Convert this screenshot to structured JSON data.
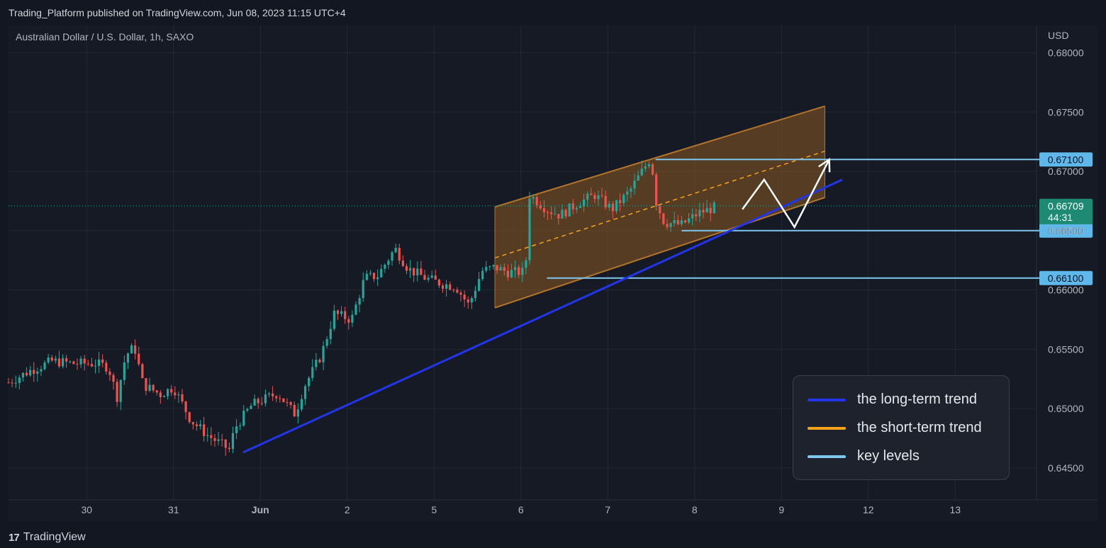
{
  "header": {
    "published": "Trading_Platform published on TradingView.com, Jun 08, 2023 11:15 UTC+4"
  },
  "symbol_line": "Australian Dollar / U.S. Dollar, 1h, SAXO",
  "currency": "USD",
  "footer": {
    "brand": "TradingView",
    "logo": "17"
  },
  "colors": {
    "up": "#26a69a",
    "down": "#ef5350",
    "long_trend": "#2235e8",
    "short_trend": "#f7a21b",
    "key_level": "#7ec8f0",
    "channel_fill": "#8a5a22"
  },
  "legend": [
    {
      "label": "the long-term trend",
      "color": "#2235e8"
    },
    {
      "label": "the short-term trend",
      "color": "#f7a21b"
    },
    {
      "label": "key levels",
      "color": "#7ec8f0"
    }
  ],
  "chart_data": {
    "type": "candlestick",
    "title": "Australian Dollar / U.S. Dollar, 1h, SAXO",
    "ylabel": "USD",
    "ylim": [
      0.6423,
      0.6823
    ],
    "y_ticks": [
      "0.68000",
      "0.67500",
      "0.67000",
      "0.66500",
      "0.66000",
      "0.65500",
      "0.65000",
      "0.64500"
    ],
    "x_ticks": [
      "30",
      "31",
      "Jun",
      "2",
      "5",
      "6",
      "7",
      "8",
      "9",
      "12",
      "13"
    ],
    "x_tick_pos": [
      0.9,
      1.9,
      2.9,
      3.9,
      4.9,
      5.9,
      6.9,
      7.9,
      8.9,
      9.9,
      10.9
    ],
    "price_path": [
      [
        0.0,
        0.6522
      ],
      [
        0.25,
        0.6532
      ],
      [
        0.5,
        0.654
      ],
      [
        0.75,
        0.6538
      ],
      [
        1.0,
        0.6538
      ],
      [
        1.15,
        0.6535
      ],
      [
        1.25,
        0.651
      ],
      [
        1.35,
        0.6545
      ],
      [
        1.45,
        0.6552
      ],
      [
        1.55,
        0.652
      ],
      [
        1.75,
        0.6512
      ],
      [
        1.9,
        0.6518
      ],
      [
        2.1,
        0.649
      ],
      [
        2.3,
        0.6477
      ],
      [
        2.55,
        0.6465
      ],
      [
        2.6,
        0.6483
      ],
      [
        2.8,
        0.6503
      ],
      [
        3.1,
        0.6513
      ],
      [
        3.3,
        0.6495
      ],
      [
        3.4,
        0.6518
      ],
      [
        3.6,
        0.6545
      ],
      [
        3.75,
        0.658
      ],
      [
        3.95,
        0.6575
      ],
      [
        4.1,
        0.661
      ],
      [
        4.25,
        0.6612
      ],
      [
        4.45,
        0.6635
      ],
      [
        4.6,
        0.6618
      ],
      [
        4.8,
        0.661
      ],
      [
        5.0,
        0.6605
      ],
      [
        5.15,
        0.6603
      ],
      [
        5.3,
        0.6587
      ],
      [
        5.45,
        0.6616
      ],
      [
        5.6,
        0.6619
      ],
      [
        5.75,
        0.6615
      ],
      [
        5.95,
        0.6615
      ],
      [
        6.0,
        0.668
      ],
      [
        6.2,
        0.6668
      ],
      [
        6.35,
        0.6663
      ],
      [
        6.55,
        0.6673
      ],
      [
        6.75,
        0.668
      ],
      [
        6.95,
        0.6668
      ],
      [
        7.15,
        0.6683
      ],
      [
        7.25,
        0.6695
      ],
      [
        7.4,
        0.6712
      ],
      [
        7.45,
        0.6675
      ],
      [
        7.55,
        0.6657
      ],
      [
        7.75,
        0.6655
      ],
      [
        7.95,
        0.6665
      ],
      [
        8.15,
        0.667
      ]
    ],
    "long_term_trend": {
      "from": [
        2.7,
        0.6463
      ],
      "to": [
        9.6,
        0.6693
      ]
    },
    "short_term_channel": {
      "upper": [
        [
          5.6,
          0.667
        ],
        [
          9.4,
          0.6755
        ]
      ],
      "lower": [
        [
          5.6,
          0.6585
        ],
        [
          9.4,
          0.6678
        ]
      ],
      "mid": [
        [
          5.6,
          0.6627
        ],
        [
          9.4,
          0.6717
        ]
      ]
    },
    "key_levels": [
      {
        "value": 0.671,
        "label": "0.67100"
      },
      {
        "value": 0.665,
        "label": "0.66500"
      },
      {
        "value": 0.661,
        "label": "0.66100"
      }
    ],
    "current_price": {
      "value": 0.66709,
      "label": "0.66709",
      "countdown": "44:31"
    },
    "projection": [
      [
        8.45,
        0.6668
      ],
      [
        8.7,
        0.6693
      ],
      [
        9.05,
        0.6653
      ],
      [
        9.45,
        0.671
      ]
    ]
  }
}
